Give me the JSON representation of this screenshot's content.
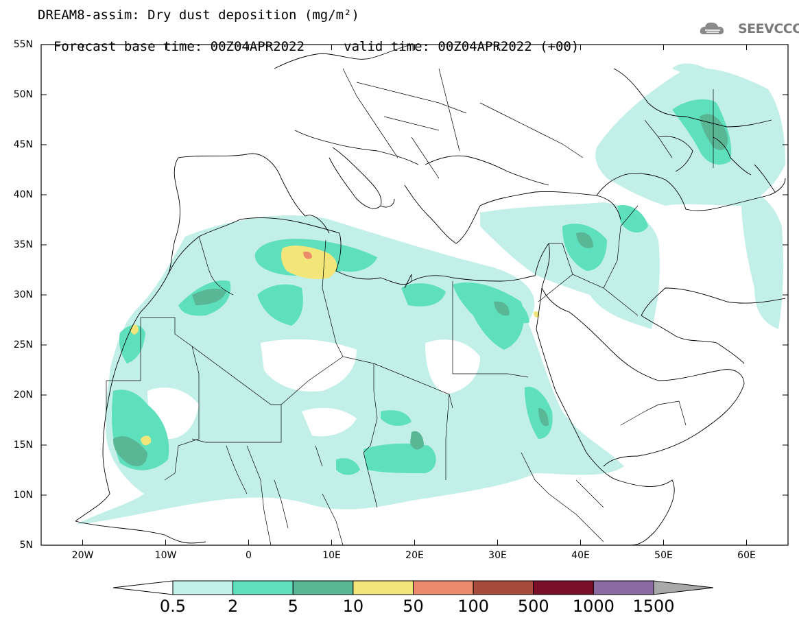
{
  "header": {
    "title": "DREAM8-assim: Dry dust deposition (mg/m²)",
    "base_time": "Forecast base time: 00Z04APR2022",
    "valid_time": "valid time: 00Z04APR2022 (+00)",
    "logo_text": "SEEVCCC",
    "logo_icon": "cloud-icon"
  },
  "map": {
    "lon_range": [
      -25,
      65
    ],
    "lat_range": [
      5,
      55
    ],
    "lat_ticks": [
      "55N",
      "50N",
      "45N",
      "40N",
      "35N",
      "30N",
      "25N",
      "20N",
      "15N",
      "10N",
      "5N"
    ],
    "lon_ticks": [
      "20W",
      "10W",
      "0",
      "10E",
      "20E",
      "30E",
      "40E",
      "50E",
      "60E"
    ],
    "lat_tick_values": [
      55,
      50,
      45,
      40,
      35,
      30,
      25,
      20,
      15,
      10,
      5
    ],
    "lon_tick_values": [
      -20,
      -10,
      0,
      10,
      20,
      30,
      40,
      50,
      60
    ]
  },
  "colorbar": {
    "labels": [
      "0.5",
      "2",
      "5",
      "10",
      "50",
      "100",
      "500",
      "1000",
      "1500"
    ],
    "colors": [
      "#c2f0e8",
      "#5fe0bd",
      "#5ab796",
      "#f2e57a",
      "#e98a6a",
      "#a84a3c",
      "#7a0f2a",
      "#8a6aa0",
      "#a9a9a9"
    ],
    "over_color": "#a9a9a9",
    "under_color": "#ffffff"
  }
}
